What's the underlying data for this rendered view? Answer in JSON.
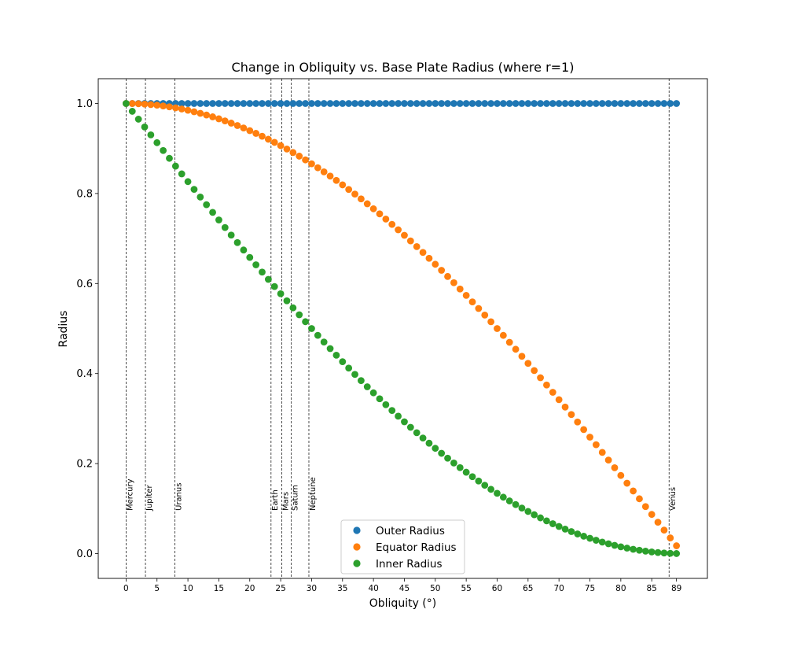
{
  "chart_data": {
    "type": "scatter",
    "title": "Change in Obliquity vs. Base Plate Radius (where r=1)",
    "xlabel": "Obliquity (°)",
    "ylabel": "Radius",
    "xlim": [
      -4.5,
      94
    ],
    "ylim": [
      -0.055,
      1.055
    ],
    "xticks": [
      0,
      5,
      10,
      15,
      20,
      25,
      30,
      35,
      40,
      45,
      50,
      55,
      60,
      65,
      70,
      75,
      80,
      85,
      89
    ],
    "yticks": [
      0.0,
      0.2,
      0.4,
      0.6,
      0.8,
      1.0
    ],
    "ytick_labels": [
      "0.0",
      "0.2",
      "0.4",
      "0.6",
      "0.8",
      "1.0"
    ],
    "x_range": [
      0,
      89
    ],
    "x_step": 1,
    "series": [
      {
        "name": "Outer Radius",
        "color": "#1f77b4",
        "formula": "constant 1"
      },
      {
        "name": "Equator Radius",
        "color": "#ff7f0e",
        "formula": "cos(obliquity)"
      },
      {
        "name": "Inner Radius",
        "color": "#2ca02c",
        "formula": "cos(2*obliquity) for obliquity < 45; else cos(obliquity) - sin(obliquity)"
      }
    ],
    "planet_lines": [
      {
        "name": "Mercury",
        "x": 0.03
      },
      {
        "name": "Jupiter",
        "x": 3.13
      },
      {
        "name": "Uranus",
        "x": 7.9
      },
      {
        "name": "Earth",
        "x": 23.44
      },
      {
        "name": "Mars",
        "x": 25.19
      },
      {
        "name": "Saturn",
        "x": 26.73
      },
      {
        "name": "Neptune",
        "x": 29.56
      },
      {
        "name": "Venus",
        "x": 87.8
      }
    ],
    "legend_position": "lower center",
    "grid": false
  }
}
